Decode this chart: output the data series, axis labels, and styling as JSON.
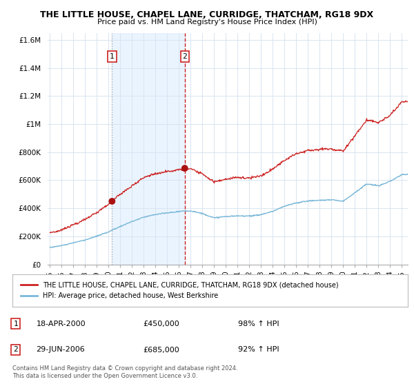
{
  "title": "THE LITTLE HOUSE, CHAPEL LANE, CURRIDGE, THATCHAM, RG18 9DX",
  "subtitle": "Price paid vs. HM Land Registry's House Price Index (HPI)",
  "ylabel_ticks": [
    "£0",
    "£200K",
    "£400K",
    "£600K",
    "£800K",
    "£1M",
    "£1.2M",
    "£1.4M",
    "£1.6M"
  ],
  "ytick_values": [
    0,
    200000,
    400000,
    600000,
    800000,
    1000000,
    1200000,
    1400000,
    1600000
  ],
  "ylim": [
    0,
    1650000
  ],
  "xlim_start": 1994.8,
  "xlim_end": 2025.5,
  "purchase1_x": 2000.29,
  "purchase1_y": 450000,
  "purchase2_x": 2006.49,
  "purchase2_y": 685000,
  "purchase1_date": "18-APR-2000",
  "purchase1_price": "£450,000",
  "purchase1_hpi": "98% ↑ HPI",
  "purchase2_date": "29-JUN-2006",
  "purchase2_price": "£685,000",
  "purchase2_hpi": "92% ↑ HPI",
  "hpi_color": "#7ab8d9",
  "price_color": "#cc2222",
  "dashed_color": "#cc2222",
  "dotted_color": "#aaaaaa",
  "marker_color": "#aa1111",
  "grid_color": "#d8e4f0",
  "shade_color": "#ddeeff",
  "legend_label_red": "THE LITTLE HOUSE, CHAPEL LANE, CURRIDGE, THATCHAM, RG18 9DX (detached house)",
  "legend_label_blue": "HPI: Average price, detached house, West Berkshire",
  "footer": "Contains HM Land Registry data © Crown copyright and database right 2024.\nThis data is licensed under the Open Government Licence v3.0.",
  "background_color": "#ffffff"
}
